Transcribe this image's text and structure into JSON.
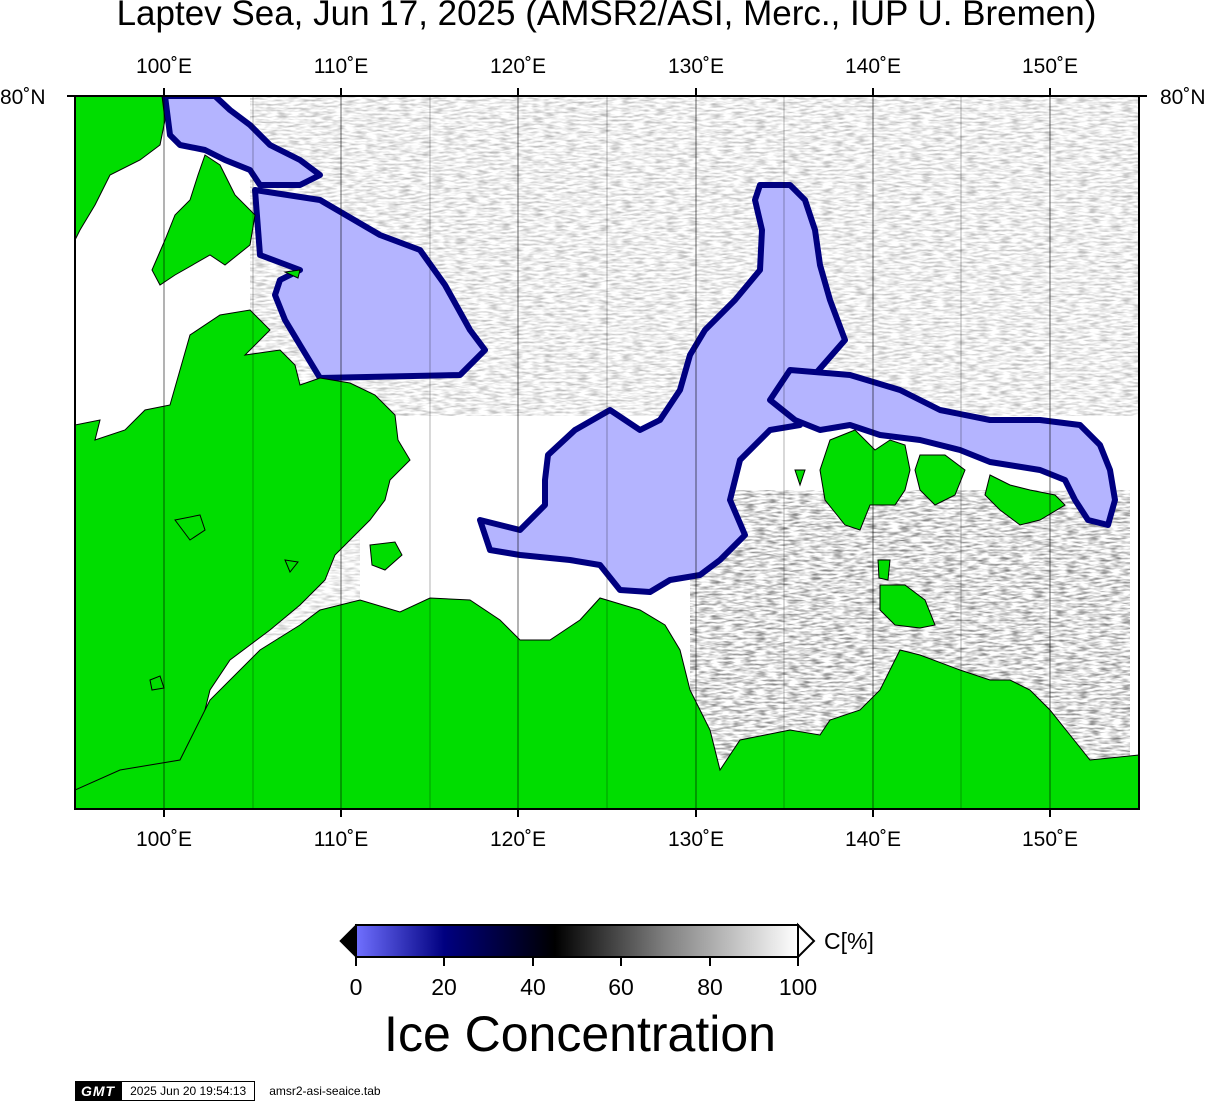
{
  "title": "Laptev Sea, Jun 17, 2025 (AMSR2/ASI, Merc., IUP U. Bremen)",
  "lon_labels": [
    "100˚E",
    "110˚E",
    "120˚E",
    "130˚E",
    "140˚E",
    "150˚E"
  ],
  "lat_labels": {
    "left": "80˚N",
    "right": "80˚N"
  },
  "colorbar": {
    "ticks": [
      "0",
      "20",
      "40",
      "60",
      "80",
      "100"
    ],
    "unit": "C[%]",
    "title": "Ice Concentration",
    "stops": [
      "#7070ff",
      "#000080",
      "#000000",
      "#808080",
      "#ffffff"
    ]
  },
  "colors": {
    "land": "#00dd00",
    "ocean_low_ice": "#b4b4ff",
    "open_water": "#ffffff"
  },
  "footer": {
    "logo": "GMT",
    "timestamp": "2025 Jun 20 19:54:13",
    "file": "amsr2-asi-seaice.tab"
  }
}
